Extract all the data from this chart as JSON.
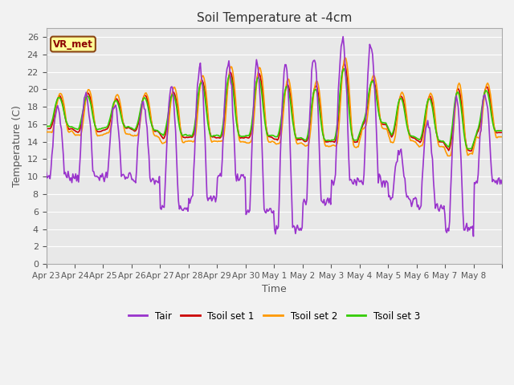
{
  "title": "Soil Temperature at -4cm",
  "xlabel": "Time",
  "ylabel": "Temperature (C)",
  "ylim": [
    0,
    27
  ],
  "yticks": [
    0,
    2,
    4,
    6,
    8,
    10,
    12,
    14,
    16,
    18,
    20,
    22,
    24,
    26
  ],
  "legend_labels": [
    "Tair",
    "Tsoil set 1",
    "Tsoil set 2",
    "Tsoil set 3"
  ],
  "line_colors": [
    "#9933cc",
    "#cc0000",
    "#ff9900",
    "#33cc00"
  ],
  "vr_met_label": "VR_met",
  "x_tick_labels": [
    "Apr 23",
    "Apr 24",
    "Apr 25",
    "Apr 26",
    "Apr 27",
    "Apr 28",
    "Apr 29",
    "Apr 30",
    "May 1",
    "May 2",
    "May 3",
    "May 4",
    "May 5",
    "May 6",
    "May 7",
    "May 8"
  ],
  "n_points": 480,
  "days": 16,
  "fig_bg": "#f2f2f2",
  "plot_bg": "#e8e8e8",
  "grid_color": "#ffffff"
}
